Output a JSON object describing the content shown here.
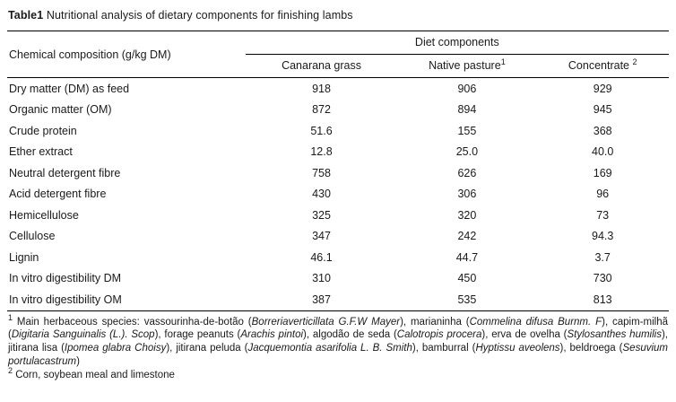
{
  "title": {
    "label": "Table1",
    "text": " Nutritional analysis of dietary components for finishing lambs"
  },
  "table": {
    "row_header": "Chemical composition (g/kg DM)",
    "group_header": "Diet components",
    "columns": [
      {
        "label": "Canarana grass",
        "sup": ""
      },
      {
        "label": "Native pasture",
        "sup": "1"
      },
      {
        "label": "Concentrate ",
        "sup": "2"
      }
    ],
    "rows": [
      {
        "label": "Dry matter (DM) as feed",
        "values": [
          "918",
          "906",
          "929"
        ]
      },
      {
        "label": "Organic matter (OM)",
        "values": [
          "872",
          "894",
          "945"
        ]
      },
      {
        "label": "Crude protein",
        "values": [
          "51.6",
          "155",
          "368"
        ]
      },
      {
        "label": "Ether extract",
        "values": [
          "12.8",
          "25.0",
          "40.0"
        ]
      },
      {
        "label": "Neutral detergent fibre",
        "values": [
          "758",
          "626",
          "169"
        ]
      },
      {
        "label": "Acid detergent fibre",
        "values": [
          "430",
          "306",
          "96"
        ]
      },
      {
        "label": "Hemicellulose",
        "values": [
          "325",
          "320",
          "73"
        ]
      },
      {
        "label": "Cellulose",
        "values": [
          "347",
          "242",
          "94.3"
        ]
      },
      {
        "label": "Lignin",
        "values": [
          "46.1",
          "44.7",
          "3.7"
        ]
      },
      {
        "label": "In vitro digestibility DM",
        "values": [
          "310",
          "450",
          "730"
        ]
      },
      {
        "label": "In vitro digestibility OM",
        "values": [
          "387",
          "535",
          "813"
        ]
      }
    ]
  },
  "footnotes": [
    {
      "sup": "1",
      "segments": [
        {
          "text": " Main herbaceous species: vassourinha-de-botão (",
          "italic": false
        },
        {
          "text": "Borreriaverticillata G.F.W Mayer",
          "italic": true
        },
        {
          "text": "), marianinha (",
          "italic": false
        },
        {
          "text": "Commelina difusa Burnm. F",
          "italic": true
        },
        {
          "text": "), capim-milhã (",
          "italic": false
        },
        {
          "text": "Digitaria Sanguinalis (L.). Scop",
          "italic": true
        },
        {
          "text": "), forage peanuts (",
          "italic": false
        },
        {
          "text": "Arachis pintoi",
          "italic": true
        },
        {
          "text": "), algodão de seda (",
          "italic": false
        },
        {
          "text": "Calotropis procera",
          "italic": true
        },
        {
          "text": "), erva de ovelha (",
          "italic": false
        },
        {
          "text": "Stylosanthes humilis",
          "italic": true
        },
        {
          "text": "), jitirana lisa (",
          "italic": false
        },
        {
          "text": "Ipomea glabra Choisy",
          "italic": true
        },
        {
          "text": "), jitirana peluda (",
          "italic": false
        },
        {
          "text": "Jacquemontia asarifolia L. B. Smith",
          "italic": true
        },
        {
          "text": "), bamburral (",
          "italic": false
        },
        {
          "text": "Hyptissu aveolens",
          "italic": true
        },
        {
          "text": "), beldroega (",
          "italic": false
        },
        {
          "text": "Sesuvium portulacastrum",
          "italic": true
        },
        {
          "text": ")",
          "italic": false
        }
      ]
    },
    {
      "sup": "2",
      "segments": [
        {
          "text": " Corn, soybean meal and limestone",
          "italic": false
        }
      ]
    }
  ]
}
